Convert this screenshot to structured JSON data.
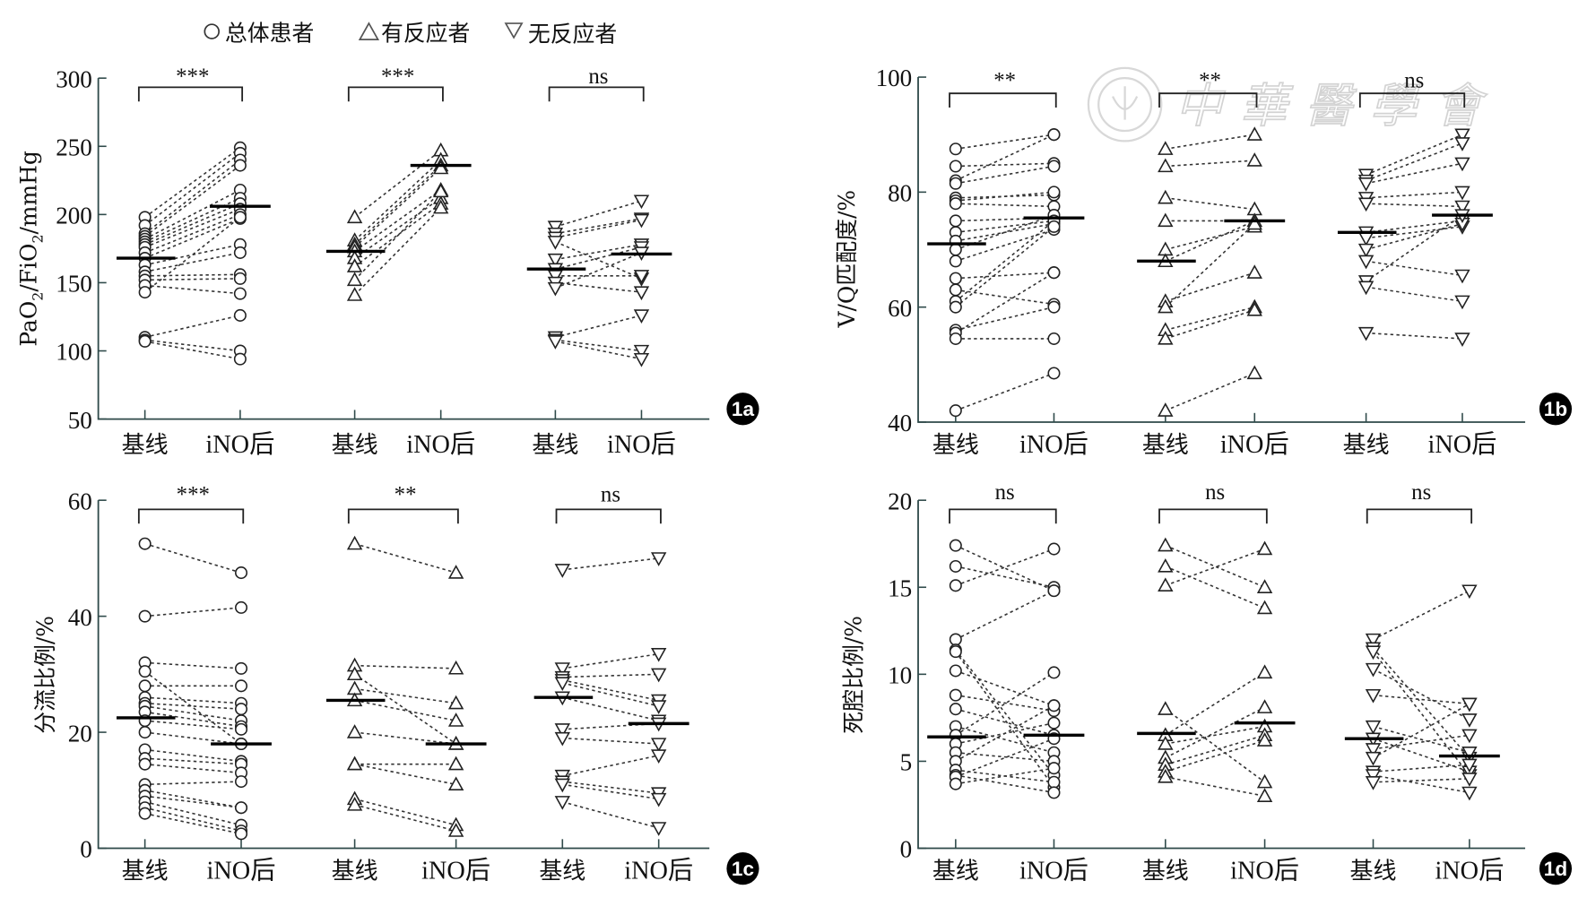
{
  "legend": {
    "items": [
      {
        "marker": "circle",
        "label": "总体患者"
      },
      {
        "marker": "triangle-up",
        "label": "有反应者"
      },
      {
        "marker": "triangle-down",
        "label": "无反应者"
      }
    ]
  },
  "watermark": {
    "text": "中華醫學會"
  },
  "colors": {
    "axis": "#2f4a4a",
    "marker_stroke": "#222222",
    "mean_bar": "#000000",
    "badge": "#000000"
  },
  "chart_data": [
    {
      "id": "1a",
      "type": "scatter",
      "badge": "1a",
      "ylabel": "PaO2/FiO2/mmHg",
      "ylabel_parts": {
        "main": "PaO",
        "sub1": "2",
        "mid": "/FiO",
        "sub2": "2",
        "tail": "/mmHg"
      },
      "ylim": [
        50,
        300
      ],
      "yticks": [
        50,
        100,
        150,
        200,
        250,
        300
      ],
      "categories": [
        "基线",
        "iNO后",
        "基线",
        "iNO后",
        "基线",
        "iNO后"
      ],
      "groups": [
        {
          "name": "总体患者",
          "marker": "circle",
          "significance": "***",
          "baseline_mean": 168,
          "post_mean": 206,
          "pairs": [
            [
              198,
              249
            ],
            [
              192,
              245
            ],
            [
              186,
              240
            ],
            [
              184,
              236
            ],
            [
              182,
              218
            ],
            [
              180,
              212
            ],
            [
              178,
              208
            ],
            [
              176,
              204
            ],
            [
              172,
              200
            ],
            [
              168,
              197
            ],
            [
              163,
              178
            ],
            [
              158,
              172
            ],
            [
              155,
              156
            ],
            [
              152,
              153
            ],
            [
              148,
              142
            ],
            [
              143,
              198
            ],
            [
              110,
              126
            ],
            [
              108,
              100
            ],
            [
              107,
              94
            ]
          ]
        },
        {
          "name": "有反应者",
          "marker": "triangle-up",
          "significance": "***",
          "baseline_mean": 173,
          "post_mean": 236,
          "pairs": [
            [
              198,
              247
            ],
            [
              181,
              240
            ],
            [
              178,
              236
            ],
            [
              176,
              234
            ],
            [
              173,
              218
            ],
            [
              168,
              212
            ],
            [
              162,
              208
            ],
            [
              152,
              217
            ],
            [
              141,
              205
            ]
          ]
        },
        {
          "name": "无反应者",
          "marker": "triangle-down",
          "significance": "ns",
          "baseline_mean": 160,
          "post_mean": 171,
          "pairs": [
            [
              191,
              210
            ],
            [
              186,
              197
            ],
            [
              183,
              196
            ],
            [
              180,
              153
            ],
            [
              167,
              178
            ],
            [
              160,
              176
            ],
            [
              155,
              155
            ],
            [
              150,
              143
            ],
            [
              146,
              172
            ],
            [
              110,
              126
            ],
            [
              108,
              100
            ],
            [
              107,
              94
            ]
          ]
        }
      ]
    },
    {
      "id": "1b",
      "type": "scatter",
      "badge": "1b",
      "ylabel": "V/Q匹配度/%",
      "ylim": [
        40,
        100
      ],
      "yticks": [
        40,
        60,
        80,
        100
      ],
      "categories": [
        "基线",
        "iNO后",
        "基线",
        "iNO后",
        "基线",
        "iNO后"
      ],
      "groups": [
        {
          "name": "总体患者",
          "marker": "circle",
          "significance": "**",
          "baseline_mean": 71,
          "post_mean": 75.5,
          "pairs": [
            [
              87.5,
              90
            ],
            [
              84.5,
              85
            ],
            [
              82,
              90
            ],
            [
              81.5,
              84.5
            ],
            [
              79,
              79.5
            ],
            [
              78.5,
              80
            ],
            [
              78,
              77.5
            ],
            [
              75,
              75.5
            ],
            [
              73,
              75
            ],
            [
              71.5,
              74.5
            ],
            [
              70,
              76
            ],
            [
              68,
              73.5
            ],
            [
              65,
              66
            ],
            [
              63,
              60.5
            ],
            [
              61,
              75
            ],
            [
              60,
              74
            ],
            [
              56,
              60
            ],
            [
              55.5,
              66
            ],
            [
              54.5,
              54.5
            ],
            [
              42,
              48.5
            ]
          ]
        },
        {
          "name": "有反应者",
          "marker": "triangle-up",
          "significance": "**",
          "baseline_mean": 68,
          "post_mean": 75,
          "pairs": [
            [
              87.5,
              90
            ],
            [
              84.5,
              85.5
            ],
            [
              79,
              77
            ],
            [
              75,
              75
            ],
            [
              70,
              74
            ],
            [
              68,
              75
            ],
            [
              61,
              66
            ],
            [
              60,
              74.5
            ],
            [
              56,
              60
            ],
            [
              54.5,
              59.5
            ],
            [
              42,
              48.5
            ]
          ]
        },
        {
          "name": "无反应者",
          "marker": "triangle-down",
          "significance": "ns",
          "baseline_mean": 73,
          "post_mean": 76,
          "pairs": [
            [
              83,
              90
            ],
            [
              82,
              88.5
            ],
            [
              81.5,
              85
            ],
            [
              79,
              80
            ],
            [
              78,
              77.5
            ],
            [
              73,
              75
            ],
            [
              72,
              74
            ],
            [
              70,
              74.5
            ],
            [
              68,
              65.5
            ],
            [
              64.5,
              76
            ],
            [
              63.5,
              61
            ],
            [
              55.5,
              54.5
            ]
          ]
        }
      ]
    },
    {
      "id": "1c",
      "type": "scatter",
      "badge": "1c",
      "ylabel": "分流比例/%",
      "ylim": [
        0,
        60
      ],
      "yticks": [
        0,
        20,
        40,
        60
      ],
      "categories": [
        "基线",
        "iNO后",
        "基线",
        "iNO后",
        "基线",
        "iNO后"
      ],
      "groups": [
        {
          "name": "总体患者",
          "marker": "circle",
          "significance": "***",
          "baseline_mean": 22.5,
          "post_mean": 18,
          "pairs": [
            [
              52.5,
              47.5
            ],
            [
              40,
              41.5
            ],
            [
              32,
              31
            ],
            [
              30.5,
              18
            ],
            [
              28,
              28
            ],
            [
              26,
              25
            ],
            [
              25,
              24
            ],
            [
              24.5,
              22
            ],
            [
              23.5,
              21
            ],
            [
              22,
              20.5
            ],
            [
              20,
              18
            ],
            [
              17,
              15
            ],
            [
              15.5,
              14.5
            ],
            [
              14.5,
              13
            ],
            [
              11,
              11.5
            ],
            [
              10,
              7
            ],
            [
              9,
              7
            ],
            [
              8,
              4
            ],
            [
              7,
              3
            ],
            [
              6,
              2.5
            ]
          ]
        },
        {
          "name": "有反应者",
          "marker": "triangle-up",
          "significance": "**",
          "baseline_mean": 25.5,
          "post_mean": 18,
          "pairs": [
            [
              52.5,
              47.5
            ],
            [
              31.5,
              31
            ],
            [
              30,
              18
            ],
            [
              27.5,
              25
            ],
            [
              25.5,
              22
            ],
            [
              20,
              18
            ],
            [
              14.5,
              14.5
            ],
            [
              14.5,
              11
            ],
            [
              8.5,
              4
            ],
            [
              7.5,
              3
            ]
          ]
        },
        {
          "name": "无反应者",
          "marker": "triangle-down",
          "significance": "ns",
          "baseline_mean": 26,
          "post_mean": 21.5,
          "pairs": [
            [
              48,
              50
            ],
            [
              31,
              33.5
            ],
            [
              29.5,
              30
            ],
            [
              29,
              25.5
            ],
            [
              28.5,
              24.5
            ],
            [
              26,
              22
            ],
            [
              20.5,
              21.5
            ],
            [
              19,
              18
            ],
            [
              12.5,
              16
            ],
            [
              11.5,
              9.5
            ],
            [
              11,
              8.5
            ],
            [
              8,
              3.5
            ]
          ]
        }
      ]
    },
    {
      "id": "1d",
      "type": "scatter",
      "badge": "1d",
      "ylabel": "死腔比例/%",
      "ylim": [
        0,
        20
      ],
      "yticks": [
        0,
        5,
        10,
        15,
        20
      ],
      "categories": [
        "基线",
        "iNO后",
        "基线",
        "iNO后",
        "基线",
        "iNO后"
      ],
      "groups": [
        {
          "name": "总体患者",
          "marker": "circle",
          "significance": "ns",
          "baseline_mean": 6.4,
          "post_mean": 6.5,
          "pairs": [
            [
              17.4,
              14.8
            ],
            [
              16.2,
              15
            ],
            [
              15.1,
              17.2
            ],
            [
              12,
              14.8
            ],
            [
              11.4,
              4.2
            ],
            [
              11.3,
              3.5
            ],
            [
              10.2,
              8.2
            ],
            [
              8.8,
              7.9
            ],
            [
              8,
              6.5
            ],
            [
              7,
              5.5
            ],
            [
              6.5,
              10.1
            ],
            [
              6,
              7.2
            ],
            [
              5.5,
              5
            ],
            [
              5,
              8.2
            ],
            [
              4.5,
              3.8
            ],
            [
              4.2,
              3.2
            ],
            [
              4.1,
              6.3
            ],
            [
              3.7,
              4.6
            ]
          ]
        },
        {
          "name": "有反应者",
          "marker": "triangle-up",
          "significance": "ns",
          "baseline_mean": 6.6,
          "post_mean": 7.2,
          "pairs": [
            [
              17.4,
              15
            ],
            [
              16.2,
              13.8
            ],
            [
              15.1,
              17.2
            ],
            [
              8,
              3.8
            ],
            [
              6.5,
              10.1
            ],
            [
              6,
              7
            ],
            [
              5.2,
              8.1
            ],
            [
              4.8,
              6.5
            ],
            [
              4.4,
              6.2
            ],
            [
              4.1,
              3
            ]
          ]
        },
        {
          "name": "无反应者",
          "marker": "triangle-down",
          "significance": "ns",
          "baseline_mean": 6.3,
          "post_mean": 5.3,
          "pairs": [
            [
              12,
              14.8
            ],
            [
              11.5,
              5.2
            ],
            [
              11.3,
              4.2
            ],
            [
              10.3,
              7.4
            ],
            [
              8.8,
              8.3
            ],
            [
              7,
              5.5
            ],
            [
              6.3,
              4.4
            ],
            [
              5.7,
              6.5
            ],
            [
              5.2,
              8.3
            ],
            [
              4.4,
              4.8
            ],
            [
              4.2,
              3.2
            ],
            [
              3.8,
              4
            ]
          ]
        }
      ]
    }
  ]
}
